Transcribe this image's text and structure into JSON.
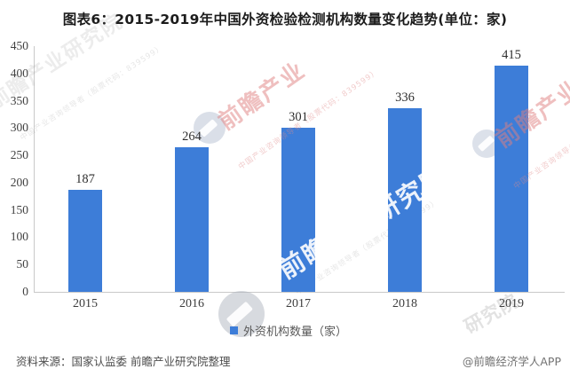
{
  "title": "图表6：2015-2019年中国外资检验检测机构数量变化趋势(单位：家)",
  "chart_data": {
    "type": "bar",
    "title": "图表6：2015-2019年中国外资检验检测机构数量变化趋势(单位：家)",
    "unit": "家",
    "categories": [
      "2015",
      "2016",
      "2017",
      "2018",
      "2019"
    ],
    "series": [
      {
        "name": "外资机构数量（家）",
        "values": [
          187,
          264,
          301,
          336,
          415
        ]
      }
    ],
    "ylim": [
      0,
      450
    ],
    "ytick_interval": 50,
    "value_labels": true,
    "grid": false,
    "legend_position": "bottom",
    "bar_color": "#3d7dd8"
  },
  "legend": {
    "label": "外资机构数量（家）"
  },
  "footer": {
    "source": "资料来源：国家认监委 前瞻产业研究院整理",
    "credit": "@前瞻经济学人APP"
  },
  "watermarks": {
    "brand": "前瞻产业研究院",
    "brand_short": "前瞻产业",
    "fragment": "研究院",
    "slogan": "中国产业咨询领导者（股票代码：839599）"
  },
  "colors": {
    "bar": "#3d7dd8",
    "axis_line": "#c9c9c9",
    "axis_text": "#404040",
    "title_text": "#1c1c1c",
    "footer_text": "#4d4d4d"
  }
}
